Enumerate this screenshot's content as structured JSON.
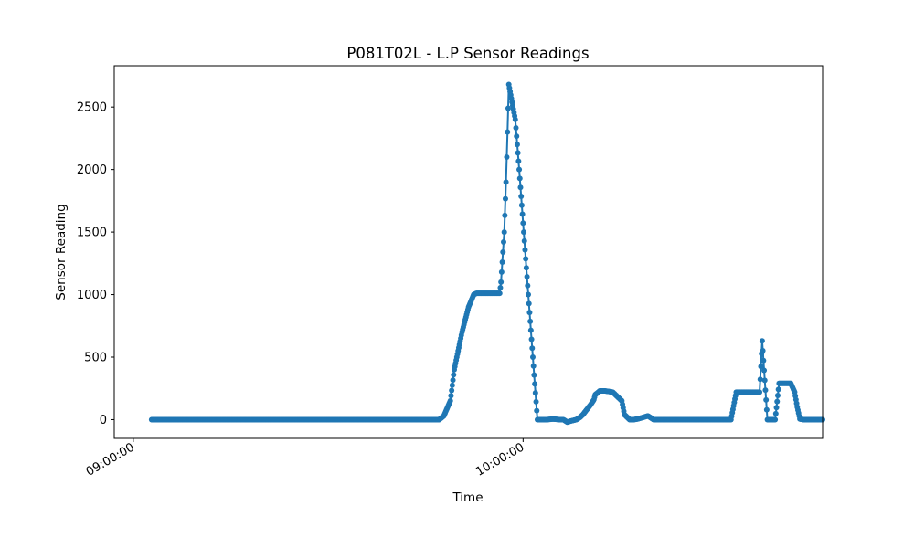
{
  "chart_data": {
    "type": "line",
    "title": "P081T02L - L.P Sensor Readings",
    "xlabel": "Time",
    "ylabel": "Sensor Reading",
    "x_ticks": [
      "09:00:00",
      "10:00:00"
    ],
    "y_ticks": [
      0,
      500,
      1000,
      1500,
      2000,
      2500
    ],
    "xlim": [
      "08:57:04",
      "10:46:06"
    ],
    "ylim": [
      -150,
      2830
    ],
    "grid": false,
    "markers": true,
    "color": "#1f77b4",
    "series": [
      {
        "x": [
          "09:02:49",
          "09:45:56",
          "09:47:05",
          "09:47:48",
          "09:48:48",
          "09:49:24",
          "09:50:36",
          "09:51:36",
          "09:52:24",
          "09:52:48",
          "09:53:06",
          "09:53:48",
          "09:55:12",
          "09:56:24",
          "09:56:36",
          "09:57:06",
          "09:57:22",
          "09:57:36",
          "09:57:48",
          "09:58:48",
          "09:59:24",
          "10:02:12",
          "10:03:42",
          "10:04:36",
          "10:05:36",
          "10:06:12",
          "10:06:48",
          "10:07:24",
          "10:08:12",
          "10:08:48",
          "10:09:12",
          "10:09:48",
          "10:10:24",
          "10:10:54",
          "10:11:06",
          "10:11:36",
          "10:11:48",
          "10:12:36",
          "10:13:12",
          "10:13:48",
          "10:15:12",
          "10:15:36",
          "10:16:24",
          "10:17:00",
          "10:17:36",
          "10:18:36",
          "10:19:12",
          "10:20:06",
          "10:22:48",
          "10:23:48",
          "10:24:24",
          "10:24:48",
          "10:25:36",
          "10:26:24",
          "10:26:48",
          "10:27:12",
          "10:28:12",
          "10:29:12",
          "10:29:48",
          "10:30:24",
          "10:31:12",
          "10:32:00",
          "10:32:48",
          "10:33:36",
          "10:34:06",
          "10:35:12",
          "10:36:24",
          "10:36:48",
          "10:37:36",
          "10:38:24",
          "10:38:48",
          "10:39:24",
          "10:40:12",
          "10:40:36",
          "10:41:00",
          "10:41:12",
          "10:41:48",
          "10:42:12",
          "10:42:36",
          "10:43:12",
          "10:43:36",
          "10:44:12",
          "10:44:48",
          "10:45:12",
          "10:45:36",
          "10:46:06"
        ],
        "y": [
          0,
          0,
          0,
          30,
          150,
          400,
          700,
          900,
          1000,
          1010,
          1010,
          1010,
          1010,
          1010,
          1100,
          1500,
          1900,
          2300,
          2680,
          2400,
          2000,
          0,
          0,
          5,
          0,
          0,
          -20,
          -10,
          0,
          20,
          40,
          80,
          120,
          160,
          200,
          220,
          230,
          230,
          225,
          220,
          150,
          40,
          0,
          0,
          5,
          20,
          30,
          0,
          0,
          0,
          0,
          0,
          0,
          0,
          0,
          0,
          0,
          0,
          0,
          0,
          0,
          0,
          220,
          220,
          220,
          220,
          220,
          630,
          0,
          0,
          0,
          290,
          290,
          290,
          290,
          290,
          220,
          100,
          5,
          0,
          0,
          0,
          0,
          0,
          0,
          0
        ]
      }
    ]
  }
}
